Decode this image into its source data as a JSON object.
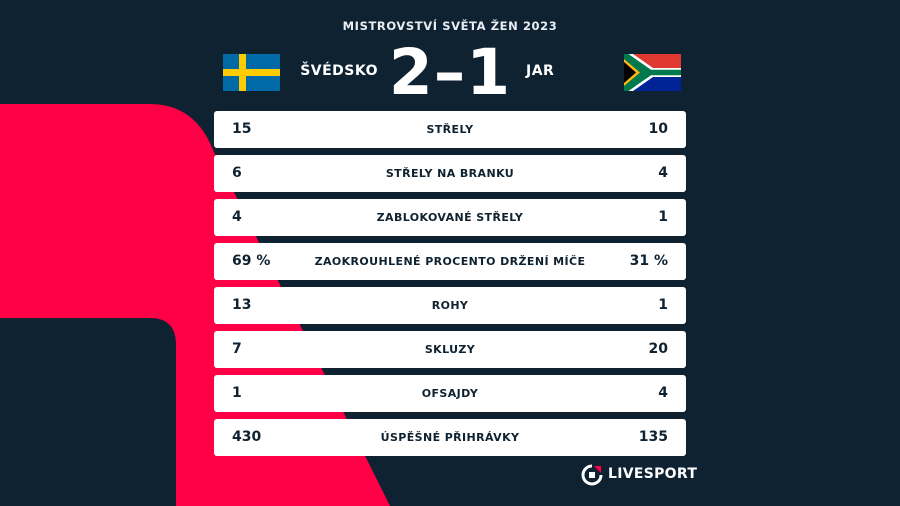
{
  "competition": "MISTROVSTVÍ SVĚTA ŽEN 2023",
  "home": {
    "name": "ŠVÉDSKO",
    "flag": "sweden-flag-icon"
  },
  "away": {
    "name": "JAR",
    "flag": "south-africa-flag-icon"
  },
  "score": "2–1",
  "stats": [
    {
      "label": "STŘELY",
      "home": "15",
      "away": "10"
    },
    {
      "label": "STŘELY NA BRANKU",
      "home": "6",
      "away": "4"
    },
    {
      "label": "ZABLOKOVANÉ STŘELY",
      "home": "4",
      "away": "1"
    },
    {
      "label": "ZAOKROUHLENÉ PROCENTO DRŽENÍ MÍČE",
      "home": "69 %",
      "away": "31 %"
    },
    {
      "label": "ROHY",
      "home": "13",
      "away": "1"
    },
    {
      "label": "SKLUZY",
      "home": "7",
      "away": "20"
    },
    {
      "label": "OFSAJDY",
      "home": "1",
      "away": "4"
    },
    {
      "label": "ÚSPĚŠNÉ PŘIHRÁVKY",
      "home": "430",
      "away": "135"
    }
  ],
  "brand": "LIVESPORT",
  "colors": {
    "background": "#0f2231",
    "accent": "#ff0046",
    "card": "#ffffff"
  }
}
